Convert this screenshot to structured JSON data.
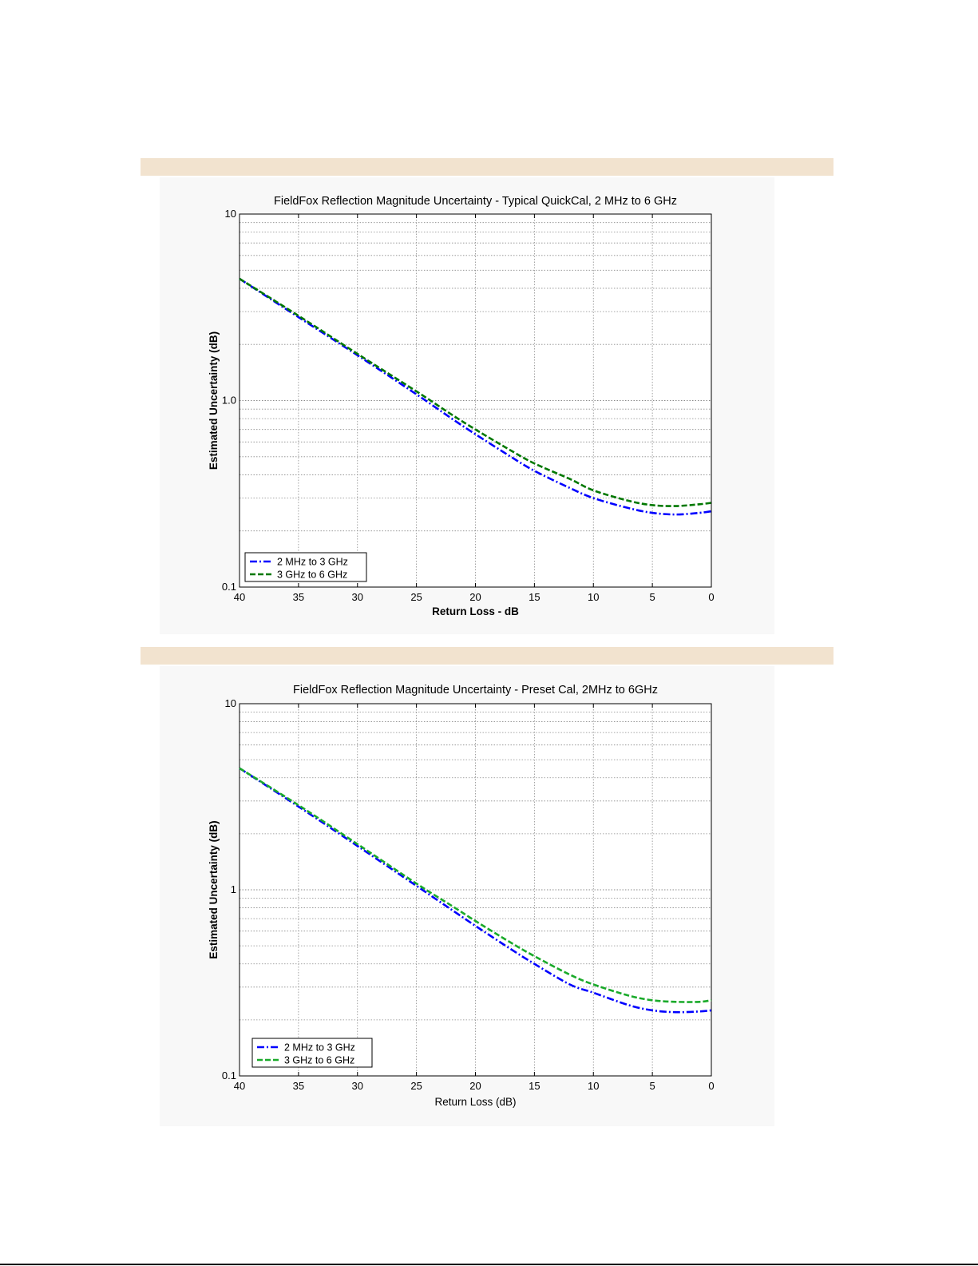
{
  "colors": {
    "band": "#f2e3cf",
    "panel": "#f8f8f8",
    "blue": "#0000ff",
    "green_dark": "#007800",
    "green_light": "#1aaa2a",
    "grid": "#8a8a8a",
    "text": "#000000"
  },
  "chart_data": [
    {
      "type": "line",
      "title": "FieldFox Reflection Magnitude Uncertainty - Typical QuickCal, 2 MHz to 6 GHz",
      "xlabel": "Return Loss -  dB",
      "ylabel": "Estimated Uncertainty (dB)",
      "xlim": [
        40,
        0
      ],
      "ylim": [
        0.1,
        10
      ],
      "yscale": "log",
      "grid": true,
      "x_ticks": [
        "40",
        "35",
        "30",
        "25",
        "20",
        "15",
        "10",
        "5",
        "0"
      ],
      "y_ticks": [
        "0.1",
        "1.0",
        "10"
      ],
      "legend_position": "bottom-left",
      "series": [
        {
          "name": "2 MHz to 3 GHz",
          "color": "#0000ff",
          "style": "dash-dot",
          "x": [
            40,
            35,
            30,
            25,
            22,
            20,
            17,
            15,
            12,
            10,
            7,
            5,
            3,
            1,
            0
          ],
          "y": [
            4.5,
            2.8,
            1.75,
            1.08,
            0.8,
            0.66,
            0.5,
            0.42,
            0.34,
            0.3,
            0.265,
            0.25,
            0.245,
            0.25,
            0.255
          ]
        },
        {
          "name": "3 GHz to 6 GHz",
          "color": "#007800",
          "style": "dashed",
          "x": [
            40,
            35,
            30,
            25,
            22,
            20,
            17,
            15,
            12,
            10,
            7,
            5,
            3,
            1,
            0
          ],
          "y": [
            4.5,
            2.85,
            1.78,
            1.12,
            0.84,
            0.7,
            0.54,
            0.46,
            0.38,
            0.33,
            0.29,
            0.275,
            0.272,
            0.278,
            0.283
          ]
        }
      ]
    },
    {
      "type": "line",
      "title": "FieldFox Reflection Magnitude Uncertainty - Preset Cal, 2MHz to 6GHz",
      "xlabel": "Return Loss  (dB)",
      "ylabel": "Estimated Uncertainty (dB)",
      "xlim": [
        40,
        0
      ],
      "ylim": [
        0.1,
        10
      ],
      "yscale": "log",
      "grid": true,
      "x_ticks": [
        "40",
        "35",
        "30",
        "25",
        "20",
        "15",
        "10",
        "5",
        "0"
      ],
      "y_ticks": [
        "0.1",
        "1",
        "10"
      ],
      "legend_position": "bottom-left",
      "series": [
        {
          "name": "2 MHz to 3 GHz",
          "color": "#0000ff",
          "style": "dash-dot",
          "x": [
            40,
            35,
            30,
            25,
            22,
            20,
            17,
            15,
            12,
            10,
            7,
            5,
            3,
            1,
            0
          ],
          "y": [
            4.5,
            2.8,
            1.72,
            1.05,
            0.78,
            0.64,
            0.48,
            0.4,
            0.31,
            0.28,
            0.24,
            0.225,
            0.22,
            0.222,
            0.225
          ]
        },
        {
          "name": "3 GHz to 6 GHz",
          "color": "#1aaa2a",
          "style": "dashed",
          "x": [
            40,
            35,
            30,
            25,
            22,
            20,
            17,
            15,
            12,
            10,
            7,
            5,
            3,
            1,
            0
          ],
          "y": [
            4.5,
            2.85,
            1.76,
            1.08,
            0.82,
            0.68,
            0.52,
            0.44,
            0.35,
            0.31,
            0.27,
            0.255,
            0.25,
            0.25,
            0.255
          ]
        }
      ]
    }
  ]
}
